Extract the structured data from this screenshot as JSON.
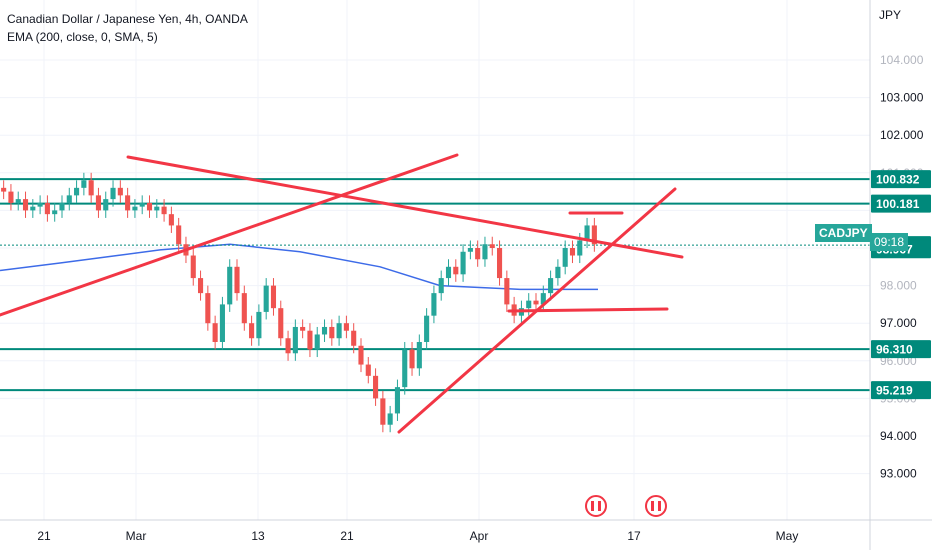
{
  "header": {
    "title": "Canadian Dollar / Japanese Yen, 4h, OANDA",
    "indicator": "EMA (200, close, 0, SMA, 5)"
  },
  "currency_label": "JPY",
  "symbol_badge": "CADJPY",
  "countdown": "09:18",
  "colors": {
    "up": "#26a69a",
    "down": "#ef5350",
    "level": "#00897b",
    "trend": "#f23645",
    "ema": "#3d6be8",
    "grid": "#e0e3eb",
    "text": "#131722"
  },
  "chart_data": {
    "type": "candlestick",
    "symbol": "CADJPY",
    "timeframe": "4h",
    "ylim": [
      92.3,
      104.2
    ],
    "y_ticks": [
      103.0,
      102.0,
      97.0,
      94.0,
      93.0
    ],
    "y_tick_labels": [
      "103.000",
      "102.000",
      "97.000",
      "94.000",
      "93.000"
    ],
    "y_tick_labels_partial": [
      "104.000",
      "101.000",
      "98.000",
      "96.000",
      "95.000"
    ],
    "x_ticks": [
      "21",
      "Mar",
      "13",
      "21",
      "Apr",
      "17",
      "May"
    ],
    "last_price": 99.078,
    "horizontal_levels": [
      {
        "label": "100.832",
        "value": 100.832
      },
      {
        "label": "100.181",
        "value": 100.181
      },
      {
        "label": "99.078",
        "value": 99.078
      },
      {
        "label": "98.967",
        "value": 98.967
      },
      {
        "label": "96.310",
        "value": 96.31
      },
      {
        "label": "95.219",
        "value": 95.219
      }
    ],
    "trendlines": [
      {
        "from": [
          "Feb 28",
          100.85
        ],
        "to": [
          "Apr 21",
          98.55
        ]
      },
      {
        "from": [
          "Feb 13",
          97.0
        ],
        "to": [
          "Apr 1",
          100.85
        ]
      },
      {
        "from": [
          "Mar 26",
          94.15
        ],
        "to": [
          "Apr 20",
          100.0
        ]
      }
    ],
    "ema200": [
      [
        0,
        98.4
      ],
      [
        60,
        98.6
      ],
      [
        160,
        98.95
      ],
      [
        230,
        99.1
      ],
      [
        300,
        98.9
      ],
      [
        380,
        98.5
      ],
      [
        440,
        98.0
      ],
      [
        520,
        97.9
      ],
      [
        598,
        97.9
      ]
    ],
    "candles_close": [
      100.5,
      100.2,
      100.3,
      100.0,
      100.1,
      100.2,
      99.9,
      100.0,
      100.2,
      100.4,
      100.6,
      100.8,
      100.4,
      100.0,
      100.3,
      100.6,
      100.4,
      100.0,
      100.1,
      100.2,
      100.0,
      100.1,
      99.9,
      99.6,
      99.1,
      98.8,
      98.2,
      97.8,
      97.0,
      96.5,
      97.5,
      98.5,
      97.8,
      97.0,
      96.6,
      97.3,
      98.0,
      97.4,
      96.6,
      96.2,
      96.9,
      96.8,
      96.3,
      96.7,
      96.9,
      96.6,
      97.0,
      96.8,
      96.4,
      95.9,
      95.6,
      95.0,
      94.3,
      94.6,
      95.3,
      96.3,
      95.8,
      96.5,
      97.2,
      97.8,
      98.2,
      98.5,
      98.3,
      98.9,
      99.0,
      98.7,
      99.1,
      99.0,
      98.2,
      97.5,
      97.2,
      97.4,
      97.6,
      97.5,
      97.8,
      98.2,
      98.5,
      99.0,
      98.8,
      99.2,
      99.6,
      99.1
    ]
  }
}
